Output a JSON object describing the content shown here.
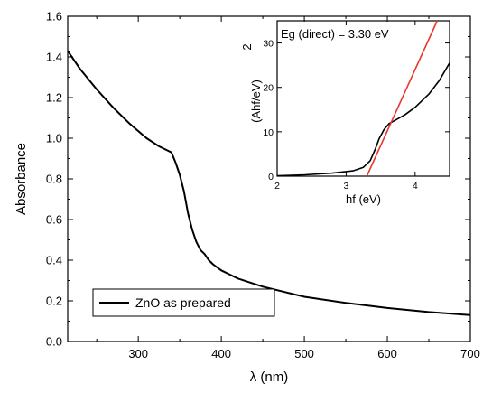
{
  "chart_data": [
    {
      "type": "line",
      "xlabel": "λ (nm)",
      "ylabel": "Absorbance",
      "xlim": [
        215,
        700
      ],
      "ylim": [
        0.0,
        1.6
      ],
      "xticks": [
        "300",
        "400",
        "500",
        "600",
        "700"
      ],
      "yticks": [
        "0.0",
        "0.2",
        "0.4",
        "0.6",
        "0.8",
        "1.0",
        "1.2",
        "1.4",
        "1.6"
      ],
      "grid": false,
      "legend": {
        "position": "bottom-left"
      },
      "series": [
        {
          "name": "ZnO as prepared",
          "color": "#000000",
          "x": [
            215,
            230,
            250,
            270,
            290,
            310,
            325,
            335,
            340,
            345,
            350,
            355,
            360,
            365,
            370,
            375,
            380,
            385,
            390,
            400,
            420,
            450,
            500,
            550,
            600,
            650,
            700
          ],
          "y": [
            1.43,
            1.34,
            1.24,
            1.15,
            1.07,
            1.0,
            0.96,
            0.94,
            0.93,
            0.88,
            0.82,
            0.74,
            0.63,
            0.55,
            0.49,
            0.45,
            0.43,
            0.4,
            0.38,
            0.35,
            0.31,
            0.27,
            0.22,
            0.19,
            0.165,
            0.145,
            0.13
          ]
        }
      ]
    },
    {
      "type": "line",
      "xlabel": "hf (eV)",
      "ylabel": "(Ahf/eV)",
      "ylabel_superscript": "2",
      "xlim": [
        2.0,
        4.5
      ],
      "ylim": [
        0,
        35
      ],
      "xticks": [
        "2",
        "3",
        "4"
      ],
      "yticks": [
        "0",
        "10",
        "20",
        "30"
      ],
      "annotation": "Eg (direct) = 3.30 eV",
      "series": [
        {
          "color": "#000000",
          "x": [
            2.0,
            2.4,
            2.8,
            3.1,
            3.25,
            3.35,
            3.42,
            3.48,
            3.55,
            3.62,
            3.7,
            3.85,
            4.0,
            4.2,
            4.35,
            4.5
          ],
          "y": [
            0.1,
            0.3,
            0.7,
            1.2,
            2.0,
            3.5,
            6.0,
            8.5,
            10.5,
            11.8,
            12.5,
            13.8,
            15.5,
            18.5,
            21.5,
            25.5
          ]
        },
        {
          "color": "#e8382c",
          "x": [
            3.3,
            4.32
          ],
          "y": [
            0,
            35
          ]
        }
      ]
    }
  ]
}
